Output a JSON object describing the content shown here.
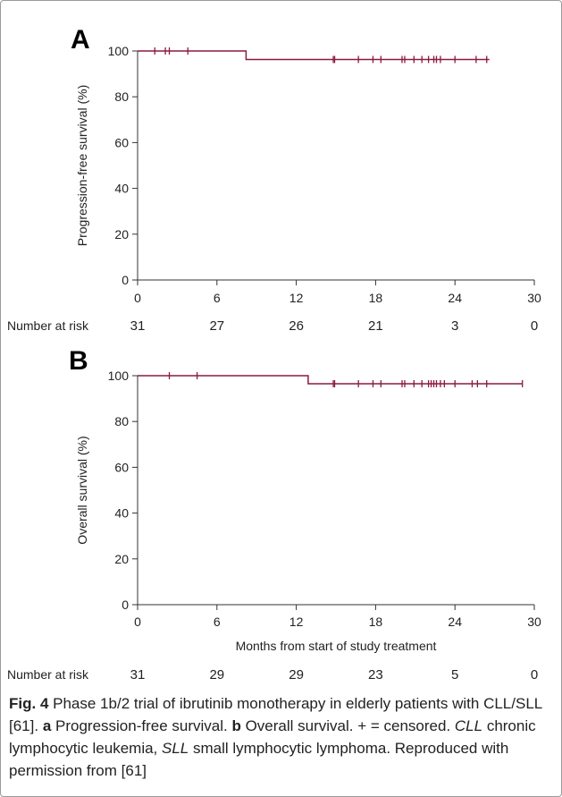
{
  "chart_data": [
    {
      "type": "line",
      "panel": "A",
      "ylabel": "Progression-free survival (%)",
      "xlabel": "",
      "xlim": [
        0,
        30
      ],
      "ylim": [
        0,
        100
      ],
      "xticks": [
        0,
        6,
        12,
        18,
        24,
        30
      ],
      "yticks": [
        0,
        20,
        40,
        60,
        80,
        100
      ],
      "step_points": [
        [
          0,
          100
        ],
        [
          8.2,
          100
        ],
        [
          8.2,
          96.3
        ],
        [
          26.6,
          96.3
        ]
      ],
      "censored": [
        1.3,
        2.1,
        2.4,
        3.8,
        14.8,
        14.9,
        16.7,
        17.8,
        18.4,
        20,
        20.2,
        20.9,
        21.5,
        22,
        22.4,
        22.6,
        22.9,
        24,
        25.6,
        26.4
      ],
      "risk_label": "Number at risk",
      "risk_x": [
        0,
        6,
        12,
        18,
        24,
        30
      ],
      "number_at_risk": [
        "31",
        "27",
        "26",
        "21",
        "3",
        "0"
      ],
      "color": "#8b1a3c"
    },
    {
      "type": "line",
      "panel": "B",
      "ylabel": "Overall survival (%)",
      "xlabel": "Months from start of study treatment",
      "xlim": [
        0,
        30
      ],
      "ylim": [
        0,
        100
      ],
      "xticks": [
        0,
        6,
        12,
        18,
        24,
        30
      ],
      "yticks": [
        0,
        20,
        40,
        60,
        80,
        100
      ],
      "step_points": [
        [
          0,
          100
        ],
        [
          12.9,
          100
        ],
        [
          12.9,
          96.5
        ],
        [
          29.1,
          96.5
        ]
      ],
      "censored": [
        2.4,
        4.5,
        14.8,
        14.9,
        16.7,
        17.8,
        18.4,
        20,
        20.2,
        20.9,
        21.5,
        22,
        22.2,
        22.4,
        22.6,
        22.9,
        23.2,
        24,
        25.3,
        25.7,
        26.4,
        29.1
      ],
      "risk_label": "Number at risk",
      "risk_x": [
        0,
        6,
        12,
        18,
        24,
        30
      ],
      "number_at_risk": [
        "31",
        "29",
        "29",
        "23",
        "5",
        "0"
      ],
      "color": "#8b1a3c"
    }
  ],
  "caption": {
    "fig_label": "Fig. 4",
    "text_1": " Phase 1b/2 trial of ibrutinib monotherapy in elderly patients with CLL/SLL [61]. ",
    "label_a": "a",
    "text_2": " Progression-free survival. ",
    "label_b": "b",
    "text_3": " Overall survival. + = censored. ",
    "cll": "CLL",
    "text_4": " chronic lymphocytic leukemia, ",
    "sll": "SLL",
    "text_5": " small lymphocytic lymphoma. Reproduced with permission from [61]"
  }
}
